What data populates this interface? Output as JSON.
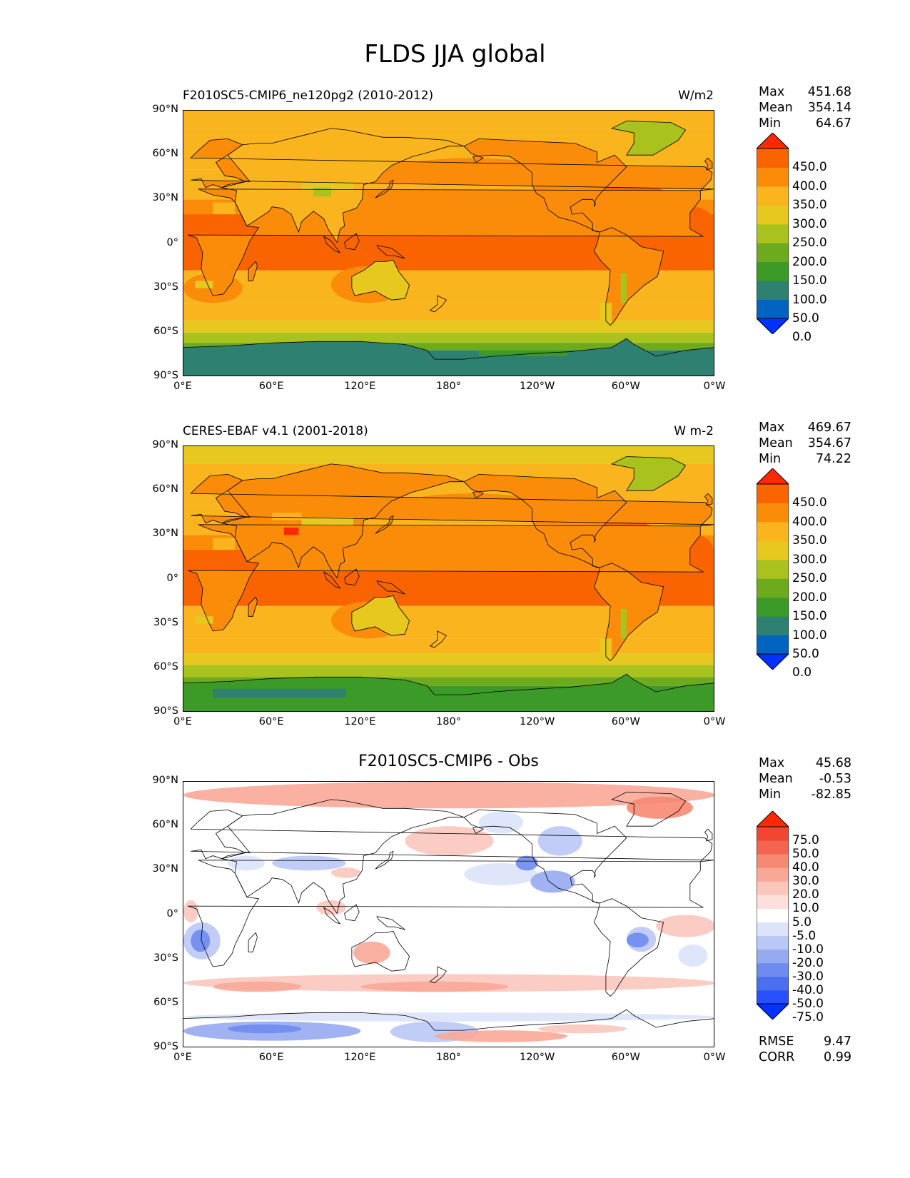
{
  "suptitle": "FLDS JJA global",
  "axes": {
    "lat_labels": [
      "90°N",
      "60°N",
      "30°N",
      "0°",
      "30°S",
      "60°S",
      "90°S"
    ],
    "lon_labels": [
      "0°E",
      "60°E",
      "120°E",
      "180°",
      "120°W",
      "60°W",
      "0°W"
    ]
  },
  "panels": [
    {
      "title_left": "F2010SC5-CMIP6_ne120pg2 (2010-2012)",
      "title_right": "W/m2",
      "stats": {
        "max_label": "Max",
        "max": "451.68",
        "mean_label": "Mean",
        "mean": "354.14",
        "min_label": "Min",
        "min": "64.67"
      },
      "colorbar_ticks": [
        "450.0",
        "400.0",
        "350.0",
        "300.0",
        "250.0",
        "200.0",
        "150.0",
        "100.0",
        "50.0",
        "0.0"
      ]
    },
    {
      "title_left": "CERES-EBAF v4.1 (2001-2018)",
      "title_right": "W m-2",
      "stats": {
        "max_label": "Max",
        "max": "469.67",
        "mean_label": "Mean",
        "mean": "354.67",
        "min_label": "Min",
        "min": "74.22"
      },
      "colorbar_ticks": [
        "450.0",
        "400.0",
        "350.0",
        "300.0",
        "250.0",
        "200.0",
        "150.0",
        "100.0",
        "50.0",
        "0.0"
      ]
    },
    {
      "title_center": "F2010SC5-CMIP6 - Obs",
      "stats": {
        "max_label": "Max",
        "max": "45.68",
        "mean_label": "Mean",
        "mean": "-0.53",
        "min_label": "Min",
        "min": "-82.85"
      },
      "colorbar_ticks": [
        "75.0",
        "50.0",
        "40.0",
        "30.0",
        "20.0",
        "10.0",
        "5.0",
        "-5.0",
        "-10.0",
        "-20.0",
        "-30.0",
        "-40.0",
        "-50.0",
        "-75.0"
      ],
      "rmse_label": "RMSE",
      "rmse": "9.47",
      "corr_label": "CORR",
      "corr": "0.99"
    }
  ],
  "colormaps": {
    "abs": [
      "#0032ff",
      "#0064c0",
      "#2e8070",
      "#3c9a28",
      "#6eaa1e",
      "#aac21e",
      "#e6c81e",
      "#fab41e",
      "#fa8c0a",
      "#fa6400",
      "#ff2800"
    ],
    "diff": [
      "#0032ff",
      "#2850ff",
      "#4a6ef0",
      "#6e8cf0",
      "#96aaf0",
      "#bac8f5",
      "#dce3fa",
      "#ffffff",
      "#fde0dc",
      "#fbc6bc",
      "#f9a898",
      "#f78872",
      "#f4644e",
      "#f04632",
      "#ff2800"
    ]
  }
}
